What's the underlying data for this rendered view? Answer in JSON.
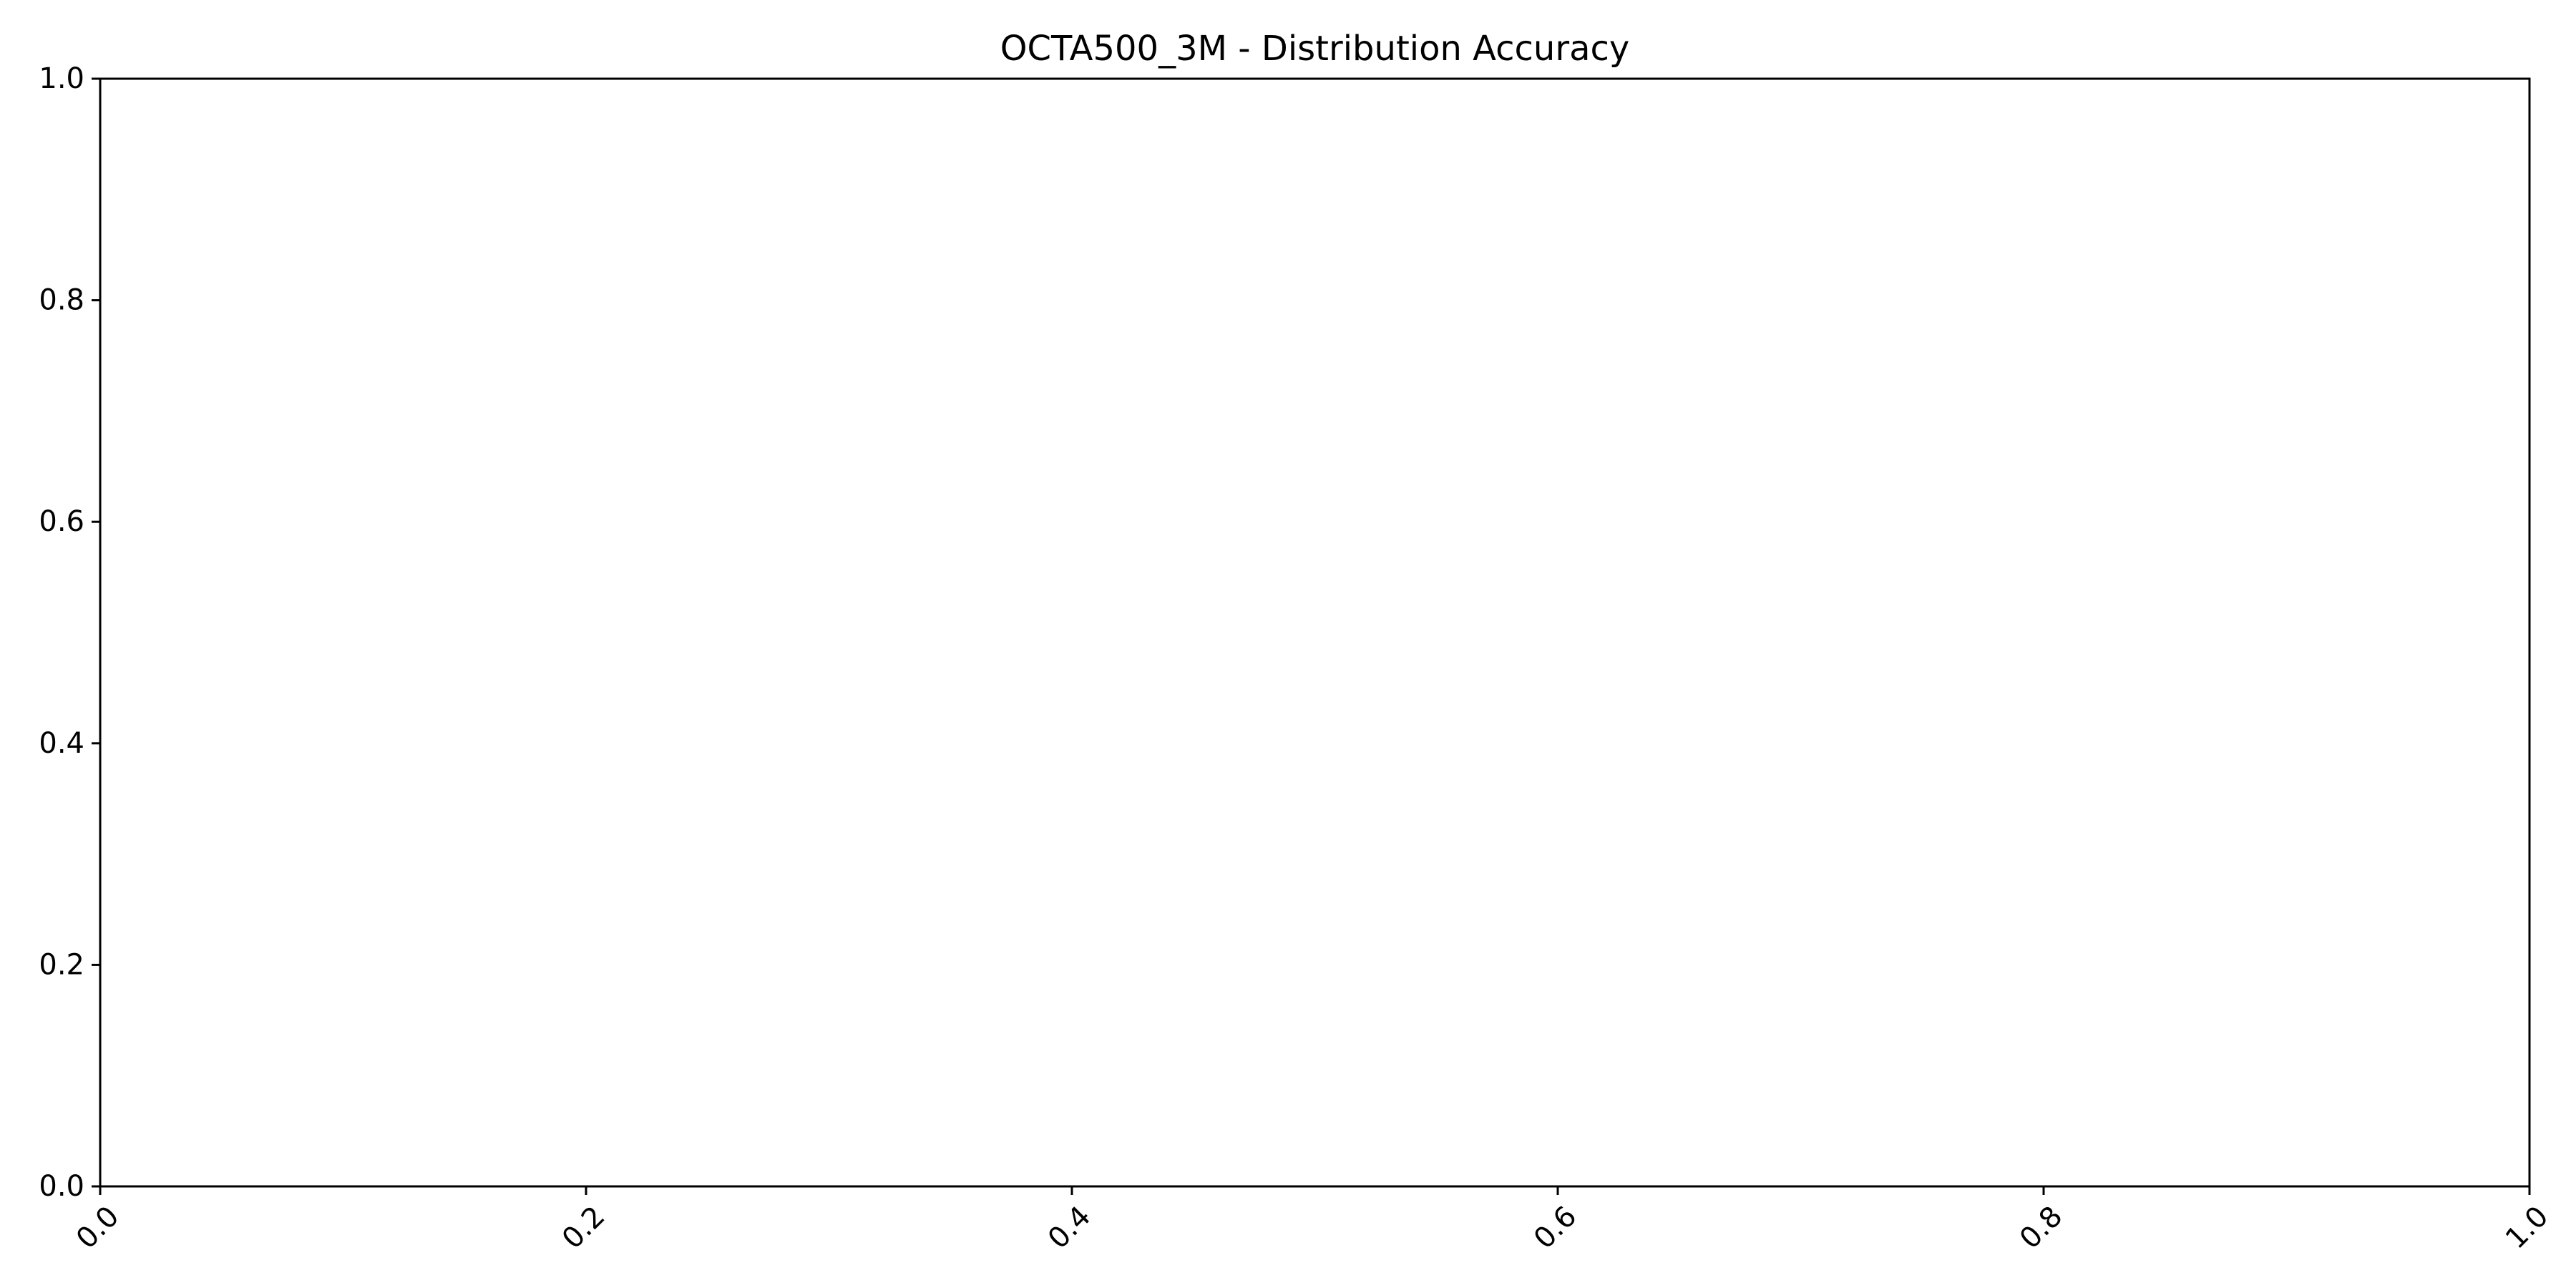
{
  "chart_data": {
    "type": "line",
    "title": "OCTA500_3M - Distribution Accuracy",
    "xlabel": "",
    "ylabel": "",
    "xlim": [
      0.0,
      1.0
    ],
    "ylim": [
      0.0,
      1.0
    ],
    "x_ticks": [
      0.0,
      0.2,
      0.4,
      0.6,
      0.8,
      1.0
    ],
    "y_ticks": [
      0.0,
      0.2,
      0.4,
      0.6,
      0.8,
      1.0
    ],
    "x_tick_labels": [
      "0.0",
      "0.2",
      "0.4",
      "0.6",
      "0.8",
      "1.0"
    ],
    "y_tick_labels": [
      "0.0",
      "0.2",
      "0.4",
      "0.6",
      "0.8",
      "1.0"
    ],
    "x_tick_rotation_deg": 45,
    "grid": false,
    "series": [],
    "colors": {
      "background": "#ffffff",
      "axes": "#000000",
      "text": "#000000"
    }
  }
}
